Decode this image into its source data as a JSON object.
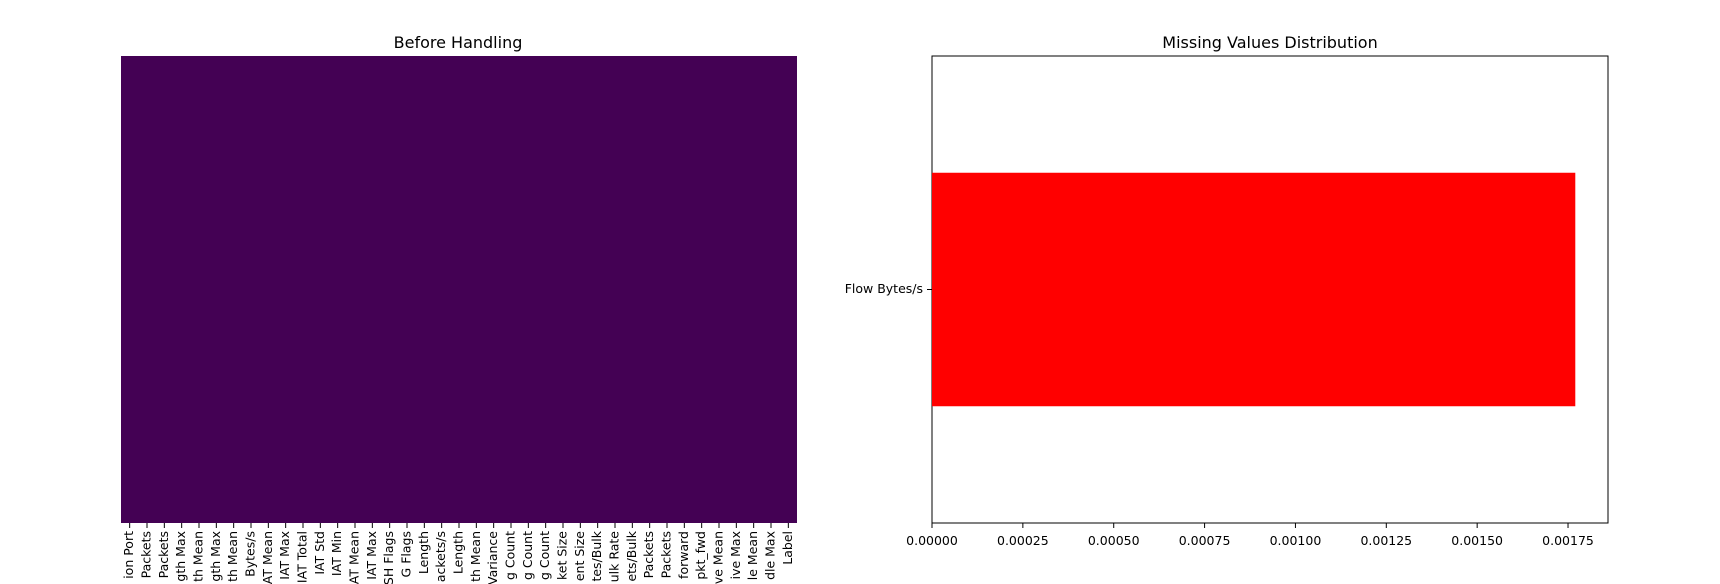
{
  "chart_data": [
    {
      "type": "heatmap",
      "title": "Before Handling",
      "fill_color": "#440154",
      "x_tick_labels_visible": [
        "ion Port",
        "Packets",
        "Packets",
        "gth Max",
        "th Mean",
        "gth Max",
        "th Mean",
        "Bytes/s",
        "IAT Mean",
        "IAT Max",
        "IAT Total",
        "IAT Std",
        "IAT Min",
        "IAT Mean",
        "IAT Max",
        "SH Flags",
        "G Flags",
        "Length",
        "ackets/s",
        "Length",
        "th Mean",
        "Variance",
        "g Count",
        "g Count",
        "g Count",
        "ket Size",
        "ent Size",
        "tes/Bulk",
        "ulk Rate",
        "ets/Bulk",
        "Packets",
        "Packets",
        "forward",
        "pkt_fwd",
        "ve Mean",
        "ive Max",
        "le Mean",
        "dle Max",
        "Label"
      ],
      "grid": false
    },
    {
      "type": "bar",
      "orientation": "horizontal",
      "title": "Missing Values Distribution",
      "categories": [
        "Flow Bytes/s"
      ],
      "values": [
        0.00177
      ],
      "xlim": [
        0,
        0.00186
      ],
      "x_ticks": [
        0.0,
        0.00025,
        0.0005,
        0.00075,
        0.001,
        0.00125,
        0.0015,
        0.00175
      ],
      "x_tick_labels": [
        "0.00000",
        "0.00025",
        "0.00050",
        "0.00075",
        "0.00100",
        "0.00125",
        "0.00150",
        "0.00175"
      ],
      "bar_color": "#ff0000",
      "grid": false
    }
  ]
}
